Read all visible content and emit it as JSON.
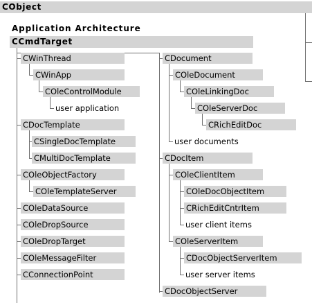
{
  "title": "CObject",
  "section_heading": "Application Architecture",
  "root_class": "CCmdTarget",
  "left_column": {
    "win_thread": "CWinThread",
    "win_app": "CWinApp",
    "ole_control_module": "COleControlModule",
    "user_application": "user application",
    "doc_template": "CDocTemplate",
    "single_doc_template": "CSingleDocTemplate",
    "multi_doc_template": "CMultiDocTemplate",
    "ole_object_factory": "COleObjectFactory",
    "ole_template_server": "COleTemplateServer",
    "ole_data_source": "COleDataSource",
    "ole_drop_source": "COleDropSource",
    "ole_drop_target": "COleDropTarget",
    "ole_message_filter": "COleMessageFilter",
    "connection_point": "CConnectionPoint"
  },
  "right_column": {
    "document": "CDocument",
    "ole_document": "COleDocument",
    "ole_linking_doc": "COleLinkingDoc",
    "ole_server_doc": "COleServerDoc",
    "rich_edit_doc": "CRichEditDoc",
    "user_documents": "user documents",
    "doc_item": "CDocItem",
    "ole_client_item": "COleClientItem",
    "ole_doc_object_item": "COleDocObjectItem",
    "rich_edit_cntr_item": "CRichEditCntrItem",
    "user_client_items": "user client items",
    "ole_server_item": "COleServerItem",
    "doc_object_server_item": "CDocObjectServerItem",
    "user_server_items": "user server items",
    "doc_object_server": "CDocObjectServer"
  }
}
